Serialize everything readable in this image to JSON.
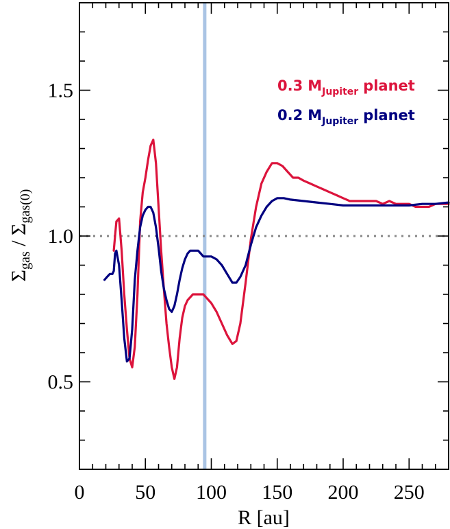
{
  "chart_data": {
    "type": "line",
    "xlabel": "R [au]",
    "ylabel": {
      "sigma1": "Σ",
      "sub1": "gas",
      "slash": " / ",
      "sigma2": "Σ",
      "sub2": "gas(0)"
    },
    "xlim": [
      0,
      280
    ],
    "ylim": [
      0.2,
      1.8
    ],
    "x_ticks": [
      0,
      50,
      100,
      150,
      200,
      250
    ],
    "x_tick_labels": [
      "0",
      "50",
      "100",
      "150",
      "200",
      "250"
    ],
    "y_ticks": [
      0.5,
      1.0,
      1.5
    ],
    "y_tick_labels": [
      "0.5",
      "1.0",
      "1.5"
    ],
    "grid": false,
    "reference_line": {
      "y": 1.0,
      "style": "dotted",
      "color": "#888888"
    },
    "vertical_line": {
      "x": 95,
      "color": "#aac4e4"
    },
    "legend_position": "top-right",
    "legend": [
      {
        "value": "0.3",
        "unit": "M",
        "unit_sub": "Jupiter",
        "suffix": "planet",
        "color": "#dc143c"
      },
      {
        "value": "0.2",
        "unit": "M",
        "unit_sub": "Jupiter",
        "suffix": "planet",
        "color": "#000080"
      }
    ],
    "series": [
      {
        "color": "#dc143c",
        "x": [
          26,
          27,
          28,
          30,
          32,
          34,
          36,
          38,
          40,
          42,
          44,
          46,
          48,
          50,
          52,
          54,
          56,
          58,
          60,
          62,
          64,
          66,
          68,
          70,
          72,
          74,
          76,
          78,
          80,
          82,
          84,
          86,
          88,
          90,
          92,
          94,
          96,
          98,
          100,
          104,
          108,
          112,
          116,
          119,
          122,
          126,
          130,
          134,
          138,
          142,
          146,
          150,
          154,
          158,
          162,
          166,
          170,
          175,
          180,
          185,
          190,
          195,
          200,
          205,
          210,
          215,
          220,
          225,
          230,
          235,
          240,
          245,
          250,
          255,
          260,
          265,
          270,
          275,
          280
        ],
        "y": [
          0.95,
          1.0,
          1.05,
          1.06,
          0.95,
          0.8,
          0.68,
          0.58,
          0.55,
          0.62,
          0.8,
          1.05,
          1.15,
          1.2,
          1.26,
          1.31,
          1.33,
          1.25,
          1.1,
          0.95,
          0.82,
          0.7,
          0.62,
          0.55,
          0.51,
          0.55,
          0.65,
          0.72,
          0.76,
          0.78,
          0.79,
          0.8,
          0.8,
          0.8,
          0.8,
          0.8,
          0.79,
          0.78,
          0.77,
          0.74,
          0.7,
          0.66,
          0.63,
          0.64,
          0.7,
          0.84,
          0.99,
          1.1,
          1.18,
          1.22,
          1.25,
          1.25,
          1.24,
          1.22,
          1.2,
          1.2,
          1.19,
          1.18,
          1.17,
          1.16,
          1.15,
          1.14,
          1.13,
          1.12,
          1.12,
          1.12,
          1.12,
          1.12,
          1.11,
          1.12,
          1.11,
          1.11,
          1.11,
          1.1,
          1.1,
          1.1,
          1.11,
          1.11,
          1.11
        ]
      },
      {
        "color": "#000080",
        "x": [
          19,
          21,
          23,
          24,
          25,
          26,
          27,
          28,
          30,
          32,
          34,
          36,
          38,
          40,
          42,
          44,
          46,
          48,
          50,
          52,
          54,
          56,
          58,
          60,
          62,
          64,
          66,
          68,
          70,
          72,
          74,
          76,
          78,
          80,
          82,
          84,
          86,
          88,
          90,
          92,
          94,
          96,
          98,
          100,
          104,
          108,
          112,
          116,
          119,
          122,
          126,
          130,
          134,
          138,
          142,
          146,
          150,
          155,
          160,
          170,
          180,
          190,
          200,
          210,
          220,
          230,
          240,
          250,
          260,
          270,
          280
        ],
        "y": [
          0.85,
          0.86,
          0.87,
          0.87,
          0.87,
          0.88,
          0.94,
          0.95,
          0.9,
          0.78,
          0.65,
          0.57,
          0.58,
          0.68,
          0.85,
          0.95,
          1.03,
          1.07,
          1.09,
          1.1,
          1.1,
          1.08,
          1.03,
          0.96,
          0.88,
          0.82,
          0.78,
          0.75,
          0.74,
          0.76,
          0.8,
          0.85,
          0.89,
          0.92,
          0.94,
          0.95,
          0.95,
          0.95,
          0.95,
          0.94,
          0.93,
          0.93,
          0.93,
          0.93,
          0.92,
          0.9,
          0.87,
          0.84,
          0.84,
          0.86,
          0.9,
          0.97,
          1.03,
          1.07,
          1.1,
          1.12,
          1.13,
          1.13,
          1.125,
          1.12,
          1.115,
          1.11,
          1.105,
          1.105,
          1.105,
          1.105,
          1.105,
          1.105,
          1.11,
          1.11,
          1.115
        ]
      }
    ]
  }
}
